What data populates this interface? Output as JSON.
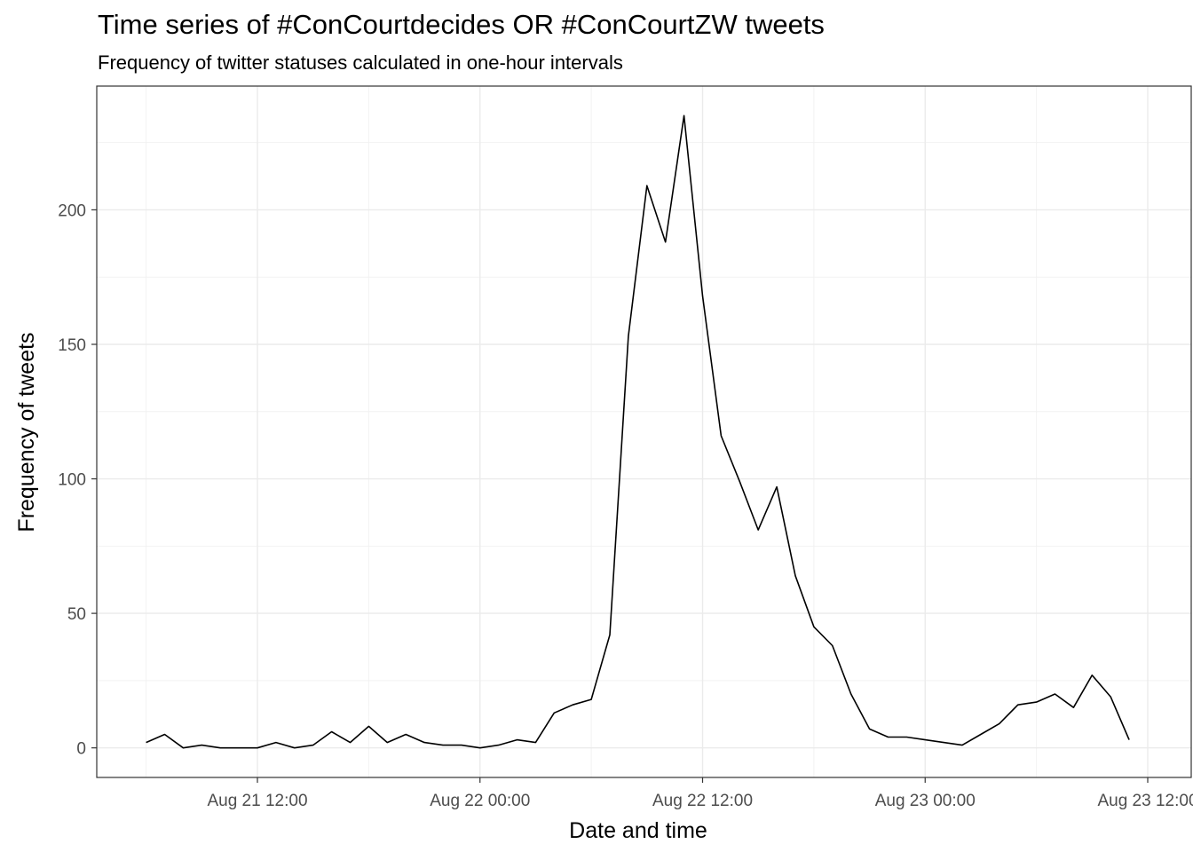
{
  "chart_data": {
    "type": "line",
    "title": "Time series of #ConCourtdecides OR #ConCourtZW tweets",
    "subtitle": "Frequency of twitter statuses calculated in one-hour intervals",
    "xlabel": "Date and time",
    "ylabel": "Frequency of tweets",
    "x_tick_labels": [
      "Aug 21 12:00",
      "Aug 22 00:00",
      "Aug 22 12:00",
      "Aug 23 00:00",
      "Aug 23 12:00"
    ],
    "y_tick_labels": [
      "0",
      "50",
      "100",
      "150",
      "200"
    ],
    "ylim": [
      -11,
      246
    ],
    "grid": true,
    "line_color": "#000000",
    "series": [
      {
        "x": [
          "Aug 21 06:00",
          "Aug 21 07:00",
          "Aug 21 08:00",
          "Aug 21 09:00",
          "Aug 21 10:00",
          "Aug 21 11:00",
          "Aug 21 12:00",
          "Aug 21 13:00",
          "Aug 21 14:00",
          "Aug 21 15:00",
          "Aug 21 16:00",
          "Aug 21 17:00",
          "Aug 21 18:00",
          "Aug 21 19:00",
          "Aug 21 20:00",
          "Aug 21 21:00",
          "Aug 21 22:00",
          "Aug 21 23:00",
          "Aug 22 00:00",
          "Aug 22 01:00",
          "Aug 22 02:00",
          "Aug 22 03:00",
          "Aug 22 04:00",
          "Aug 22 05:00",
          "Aug 22 06:00",
          "Aug 22 07:00",
          "Aug 22 08:00",
          "Aug 22 09:00",
          "Aug 22 10:00",
          "Aug 22 11:00",
          "Aug 22 12:00",
          "Aug 22 13:00",
          "Aug 22 14:00",
          "Aug 22 15:00",
          "Aug 22 16:00",
          "Aug 22 17:00",
          "Aug 22 18:00",
          "Aug 22 19:00",
          "Aug 22 20:00",
          "Aug 22 21:00",
          "Aug 22 22:00",
          "Aug 22 23:00",
          "Aug 23 00:00",
          "Aug 23 01:00",
          "Aug 23 02:00",
          "Aug 23 03:00",
          "Aug 23 04:00",
          "Aug 23 05:00",
          "Aug 23 06:00",
          "Aug 23 07:00",
          "Aug 23 08:00",
          "Aug 23 09:00",
          "Aug 23 10:00",
          "Aug 23 11:00"
        ],
        "values": [
          2,
          5,
          0,
          1,
          0,
          0,
          0,
          2,
          0,
          1,
          6,
          2,
          8,
          2,
          5,
          2,
          1,
          1,
          0,
          1,
          3,
          2,
          13,
          16,
          18,
          42,
          153,
          209,
          188,
          235,
          168,
          116,
          99,
          81,
          97,
          64,
          45,
          38,
          20,
          7,
          4,
          4,
          3,
          2,
          1,
          5,
          9,
          16,
          17,
          20,
          15,
          27,
          19,
          3
        ]
      }
    ]
  }
}
